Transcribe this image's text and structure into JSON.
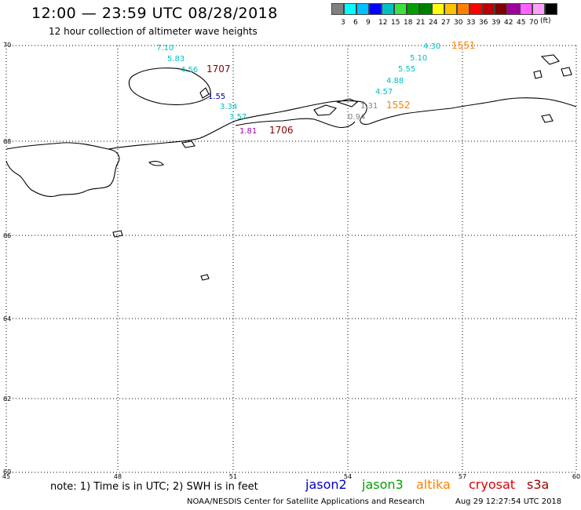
{
  "header": {
    "title": "12:00 — 23:59 UTC 08/28/2018",
    "subtitle": "12 hour collection of altimeter wave heights"
  },
  "scale": {
    "colors": [
      "#808080",
      "#00ffff",
      "#00c0ff",
      "#0000ff",
      "#00c0c0",
      "#40e040",
      "#00a000",
      "#008000",
      "#ffff00",
      "#ffc000",
      "#ff8000",
      "#ff0000",
      "#c00000",
      "#800000",
      "#a000a0",
      "#ff60ff",
      "#ffa0ff",
      "#000000"
    ],
    "labels": [
      "3",
      "6",
      "9",
      "12",
      "15",
      "18",
      "21",
      "24",
      "27",
      "30",
      "33",
      "36",
      "39",
      "42",
      "45",
      "70"
    ],
    "unit": "(ft)"
  },
  "map": {
    "lon_labels": [
      "45",
      "48",
      "51",
      "54",
      "57",
      "60"
    ],
    "lat_labels": [
      "70",
      "68",
      "66",
      "64",
      "62",
      "60"
    ],
    "grid": true
  },
  "annotations": [
    {
      "text": "7.10",
      "color": "#00c0c0"
    },
    {
      "text": "5.83",
      "color": "#00c0c0"
    },
    {
      "text": "4.56",
      "color": "#00c0c0"
    },
    {
      "text": "1707",
      "color": "#800000"
    },
    {
      "text": "1.55",
      "color": "#0000a0"
    },
    {
      "text": "3.34",
      "color": "#00c0c0"
    },
    {
      "text": "3.57",
      "color": "#00c0c0"
    },
    {
      "text": "1.81",
      "color": "#a000a0"
    },
    {
      "text": "1706",
      "color": "#800000"
    },
    {
      "text": "4.30",
      "color": "#00c0c0"
    },
    {
      "text": "1551",
      "color": "#ff8000"
    },
    {
      "text": "5.10",
      "color": "#00c0c0"
    },
    {
      "text": "5.55",
      "color": "#00c0c0"
    },
    {
      "text": "4.88",
      "color": "#00c0c0"
    },
    {
      "text": "4.57",
      "color": "#00c0c0"
    },
    {
      "text": "1.31",
      "color": "#808080"
    },
    {
      "text": "1552",
      "color": "#ff8000"
    },
    {
      "text": "0.94",
      "color": "#808080"
    }
  ],
  "footer": {
    "note": "note: 1) Time is in UTC; 2) SWH is in feet",
    "satellites": [
      {
        "name": "jason2",
        "color": "#0000c0"
      },
      {
        "name": "jason3",
        "color": "#00a000"
      },
      {
        "name": "altika",
        "color": "#ff8000"
      },
      {
        "name": "cryosat",
        "color": "#e00000"
      },
      {
        "name": "s3a",
        "color": "#a00000"
      }
    ],
    "credit": "NOAA/NESDIS Center for Satellite Applications and Research",
    "timestamp": "Aug 29 12:27:54 UTC 2018"
  }
}
